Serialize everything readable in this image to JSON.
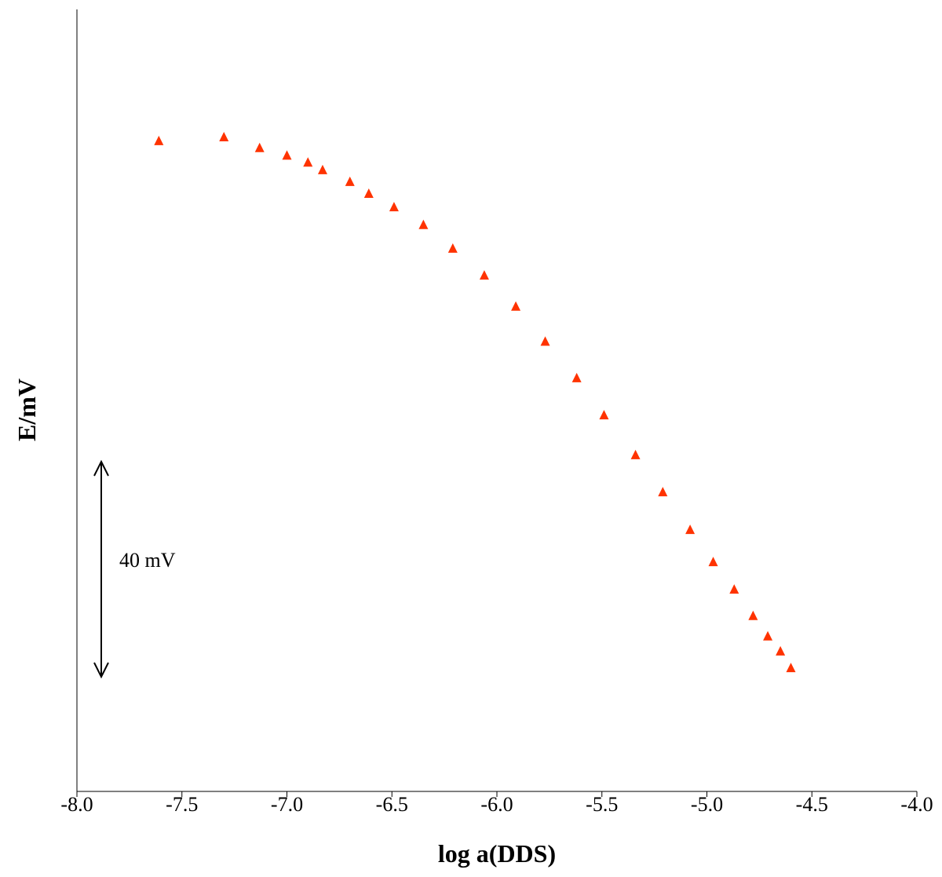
{
  "chart_data": {
    "type": "scatter",
    "x_label": "log a(DDS)",
    "y_label": "E/mV",
    "xlim": [
      -8,
      -4
    ],
    "xticks": [
      {
        "value": -8,
        "label": "-8.0"
      },
      {
        "value": -7.5,
        "label": "-7.5"
      },
      {
        "value": -7,
        "label": "-7.0"
      },
      {
        "value": -6.5,
        "label": "-6.5"
      },
      {
        "value": -6,
        "label": "-6.0"
      },
      {
        "value": -5.5,
        "label": "-5.5"
      },
      {
        "value": -5,
        "label": "-5.0"
      },
      {
        "value": -4.5,
        "label": "-4.5"
      },
      {
        "value": -4,
        "label": "-4.0"
      }
    ],
    "ylim": [
      0,
      145.4
    ],
    "scale_bar": {
      "value": 40,
      "label": "40 mV"
    },
    "series": [
      {
        "color": "#ff3300",
        "x": [
          -7.61,
          -7.3,
          -7.13,
          -7.0,
          -6.9,
          -6.83,
          -6.7,
          -6.61,
          -6.49,
          -6.35,
          -6.21,
          -6.06,
          -5.91,
          -5.77,
          -5.62,
          -5.49,
          -5.34,
          -5.21,
          -5.08,
          -4.97,
          -4.87,
          -4.78,
          -4.71,
          -4.65,
          -4.6
        ],
        "values": [
          120.9,
          121.6,
          119.6,
          118.2,
          116.9,
          115.5,
          113.3,
          111.1,
          108.6,
          105.3,
          100.9,
          95.9,
          90.1,
          83.6,
          76.8,
          69.9,
          62.5,
          55.6,
          48.6,
          42.6,
          37.5,
          32.6,
          28.8,
          26.0,
          22.9
        ]
      }
    ]
  }
}
